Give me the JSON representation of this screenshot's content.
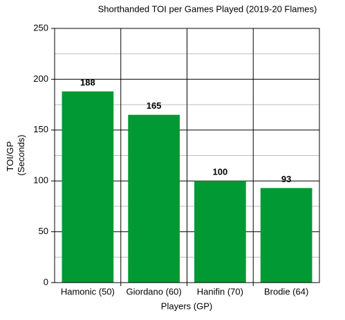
{
  "chart_data": {
    "type": "bar",
    "title": "Shorthanded TOI per Games Played (2019-20 Flames)",
    "x_label": "Players (GP)",
    "y_label": [
      "TOI/GP",
      "(Seconds)"
    ],
    "categories": [
      "Hamonic (50)",
      "Giordano (60)",
      "Hanifin (70)",
      "Brodie (64)"
    ],
    "values": [
      188,
      165,
      100,
      93
    ],
    "color": "#009933",
    "ylim": [
      0,
      250
    ],
    "yticks": [
      0,
      50,
      100,
      150,
      200,
      250
    ],
    "grid": true
  }
}
